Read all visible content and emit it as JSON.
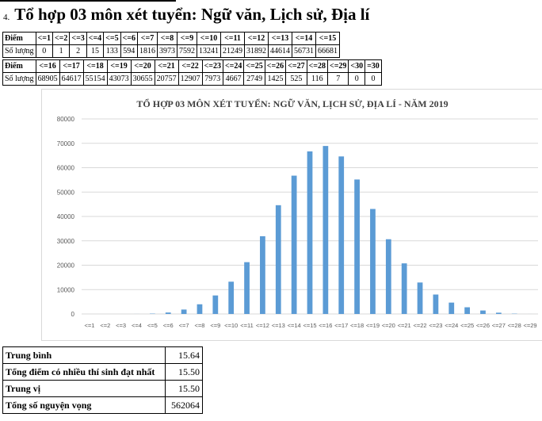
{
  "heading": {
    "number": "4.",
    "title": "Tổ hợp 03 môn xét tuyển: Ngữ văn, Lịch sử, Địa lí"
  },
  "table1": {
    "header_label": "Điểm",
    "value_label": "Số lượng",
    "headers": [
      "<=1",
      "<=2",
      "<=3",
      "<=4",
      "<=5",
      "<=6",
      "<=7",
      "<=8",
      "<=9",
      "<=10",
      "<=11",
      "<=12",
      "<=13",
      "<=14",
      "<=15"
    ],
    "values": [
      "0",
      "1",
      "2",
      "15",
      "133",
      "594",
      "1816",
      "3973",
      "7592",
      "13241",
      "21249",
      "31892",
      "44614",
      "56731",
      "66681"
    ]
  },
  "table2": {
    "header_label": "Điểm",
    "value_label": "Số lượng",
    "headers": [
      "<=16",
      "<=17",
      "<=18",
      "<=19",
      "<=20",
      "<=21",
      "<=22",
      "<=23",
      "<=24",
      "<=25",
      "<=26",
      "<=27",
      "<=28",
      "<=29",
      "<30",
      "=30"
    ],
    "values": [
      "68905",
      "64617",
      "55154",
      "43073",
      "30655",
      "20757",
      "12907",
      "7973",
      "4667",
      "2749",
      "1425",
      "525",
      "116",
      "7",
      "0",
      "0"
    ]
  },
  "chart_data": {
    "type": "bar",
    "title": "TỔ HỢP 03 MÔN XÉT TUYỂN: NGỮ VĂN, LỊCH SỬ, ĐỊA LÍ - NĂM 2019",
    "xlabel": "",
    "ylabel": "",
    "ylim": [
      0,
      80000
    ],
    "yticks": [
      0,
      10000,
      20000,
      30000,
      40000,
      50000,
      60000,
      70000,
      80000
    ],
    "grid": true,
    "color": "#5b9bd5",
    "categories": [
      "<=1",
      "<=2",
      "<=3",
      "<=4",
      "<=5",
      "<=6",
      "<=7",
      "<=8",
      "<=9",
      "<=10",
      "<=11",
      "<=12",
      "<=13",
      "<=14",
      "<=15",
      "<=16",
      "<=17",
      "<=18",
      "<=19",
      "<=20",
      "<=21",
      "<=22",
      "<=23",
      "<=24",
      "<=25",
      "<=26",
      "<=27",
      "<=28",
      "<=29"
    ],
    "values": [
      0,
      1,
      2,
      15,
      133,
      594,
      1816,
      3973,
      7592,
      13241,
      21249,
      31892,
      44614,
      56731,
      66681,
      68905,
      64617,
      55154,
      43073,
      30655,
      20757,
      12907,
      7973,
      4667,
      2749,
      1425,
      525,
      116,
      7
    ]
  },
  "stats": [
    {
      "label": "Trung bình",
      "value": "15.64"
    },
    {
      "label": "Tổng điểm có nhiều thí sinh đạt nhất",
      "value": "15.50"
    },
    {
      "label": "Trung vị",
      "value": "15.50"
    },
    {
      "label": "Tổng số nguyện vọng",
      "value": "562064"
    }
  ]
}
